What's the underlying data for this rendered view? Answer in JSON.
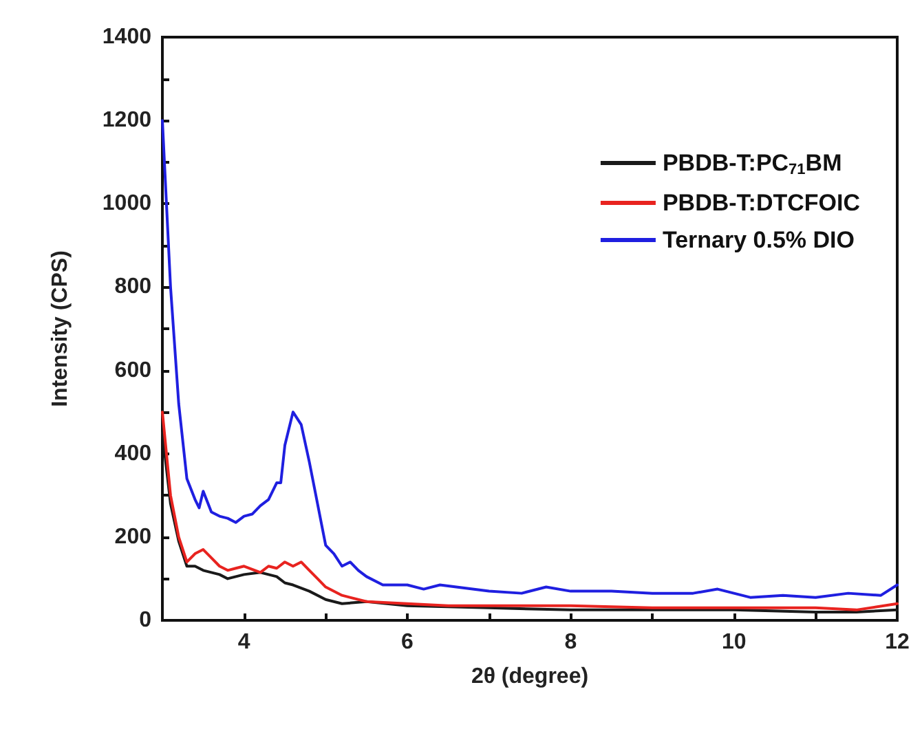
{
  "chart_data": {
    "type": "line",
    "xlabel": "2θ (degree)",
    "ylabel": "Intensity (CPS)",
    "xlim": [
      3,
      12
    ],
    "xticks": [
      {
        "value": 3,
        "label": null
      },
      4,
      {
        "value": 5,
        "label": null
      },
      6,
      {
        "value": 7,
        "label": null
      },
      8,
      {
        "value": 9,
        "label": null
      },
      10,
      {
        "value": 11,
        "label": null
      },
      12
    ],
    "ylim": [
      0,
      1400
    ],
    "yticks": [
      0,
      {
        "value": 100,
        "label": null
      },
      200,
      {
        "value": 300,
        "label": null
      },
      400,
      {
        "value": 500,
        "label": null
      },
      600,
      {
        "value": 700,
        "label": null
      },
      800,
      {
        "value": 900,
        "label": null
      },
      1000,
      {
        "value": 1100,
        "label": null
      },
      1200,
      {
        "value": 1300,
        "label": null
      },
      1400
    ],
    "grid": false,
    "legend": "top right",
    "marker": "none",
    "line_style": "solid",
    "series": [
      {
        "name": "PBDB-T:PC$_{71}$BM",
        "color": "#1a1a1a",
        "x": [
          3.0,
          3.1,
          3.2,
          3.3,
          3.4,
          3.5,
          3.7,
          3.8,
          4.0,
          4.2,
          4.4,
          4.5,
          4.6,
          4.8,
          5.0,
          5.2,
          5.5,
          6.0,
          7.0,
          8.0,
          9.0,
          10.0,
          11.0,
          11.5,
          12.0
        ],
        "values": [
          450,
          280,
          190,
          130,
          130,
          120,
          110,
          100,
          110,
          115,
          105,
          90,
          85,
          70,
          50,
          40,
          45,
          35,
          30,
          25,
          25,
          25,
          20,
          20,
          25
        ]
      },
      {
        "name": "PBDB-T:DTCFOIC",
        "color": "#e8231f",
        "x": [
          3.0,
          3.1,
          3.2,
          3.3,
          3.4,
          3.5,
          3.6,
          3.7,
          3.8,
          3.9,
          4.0,
          4.2,
          4.3,
          4.4,
          4.5,
          4.6,
          4.7,
          4.8,
          4.9,
          5.0,
          5.2,
          5.5,
          6.0,
          6.5,
          7.0,
          8.0,
          9.0,
          10.0,
          11.0,
          11.5,
          12.0
        ],
        "values": [
          500,
          300,
          200,
          140,
          160,
          170,
          150,
          130,
          120,
          125,
          130,
          115,
          130,
          125,
          140,
          130,
          140,
          120,
          100,
          80,
          60,
          45,
          40,
          35,
          35,
          35,
          30,
          30,
          30,
          25,
          40
        ]
      },
      {
        "name": "Ternary 0.5% DIO",
        "color": "#1f1fe0",
        "x": [
          3.0,
          3.05,
          3.1,
          3.2,
          3.3,
          3.4,
          3.45,
          3.5,
          3.6,
          3.7,
          3.8,
          3.9,
          4.0,
          4.1,
          4.2,
          4.3,
          4.4,
          4.45,
          4.5,
          4.6,
          4.7,
          4.8,
          4.9,
          5.0,
          5.1,
          5.2,
          5.3,
          5.4,
          5.5,
          5.7,
          6.0,
          6.2,
          6.4,
          6.6,
          7.0,
          7.4,
          7.7,
          8.0,
          8.5,
          9.0,
          9.5,
          9.8,
          10.2,
          10.6,
          11.0,
          11.4,
          11.8,
          12.0
        ],
        "values": [
          1200,
          1000,
          800,
          520,
          340,
          290,
          270,
          310,
          260,
          250,
          245,
          235,
          250,
          255,
          275,
          290,
          330,
          330,
          420,
          500,
          470,
          380,
          280,
          180,
          160,
          130,
          140,
          120,
          105,
          85,
          85,
          75,
          85,
          80,
          70,
          65,
          80,
          70,
          70,
          65,
          65,
          75,
          55,
          60,
          55,
          65,
          60,
          85
        ]
      }
    ]
  }
}
